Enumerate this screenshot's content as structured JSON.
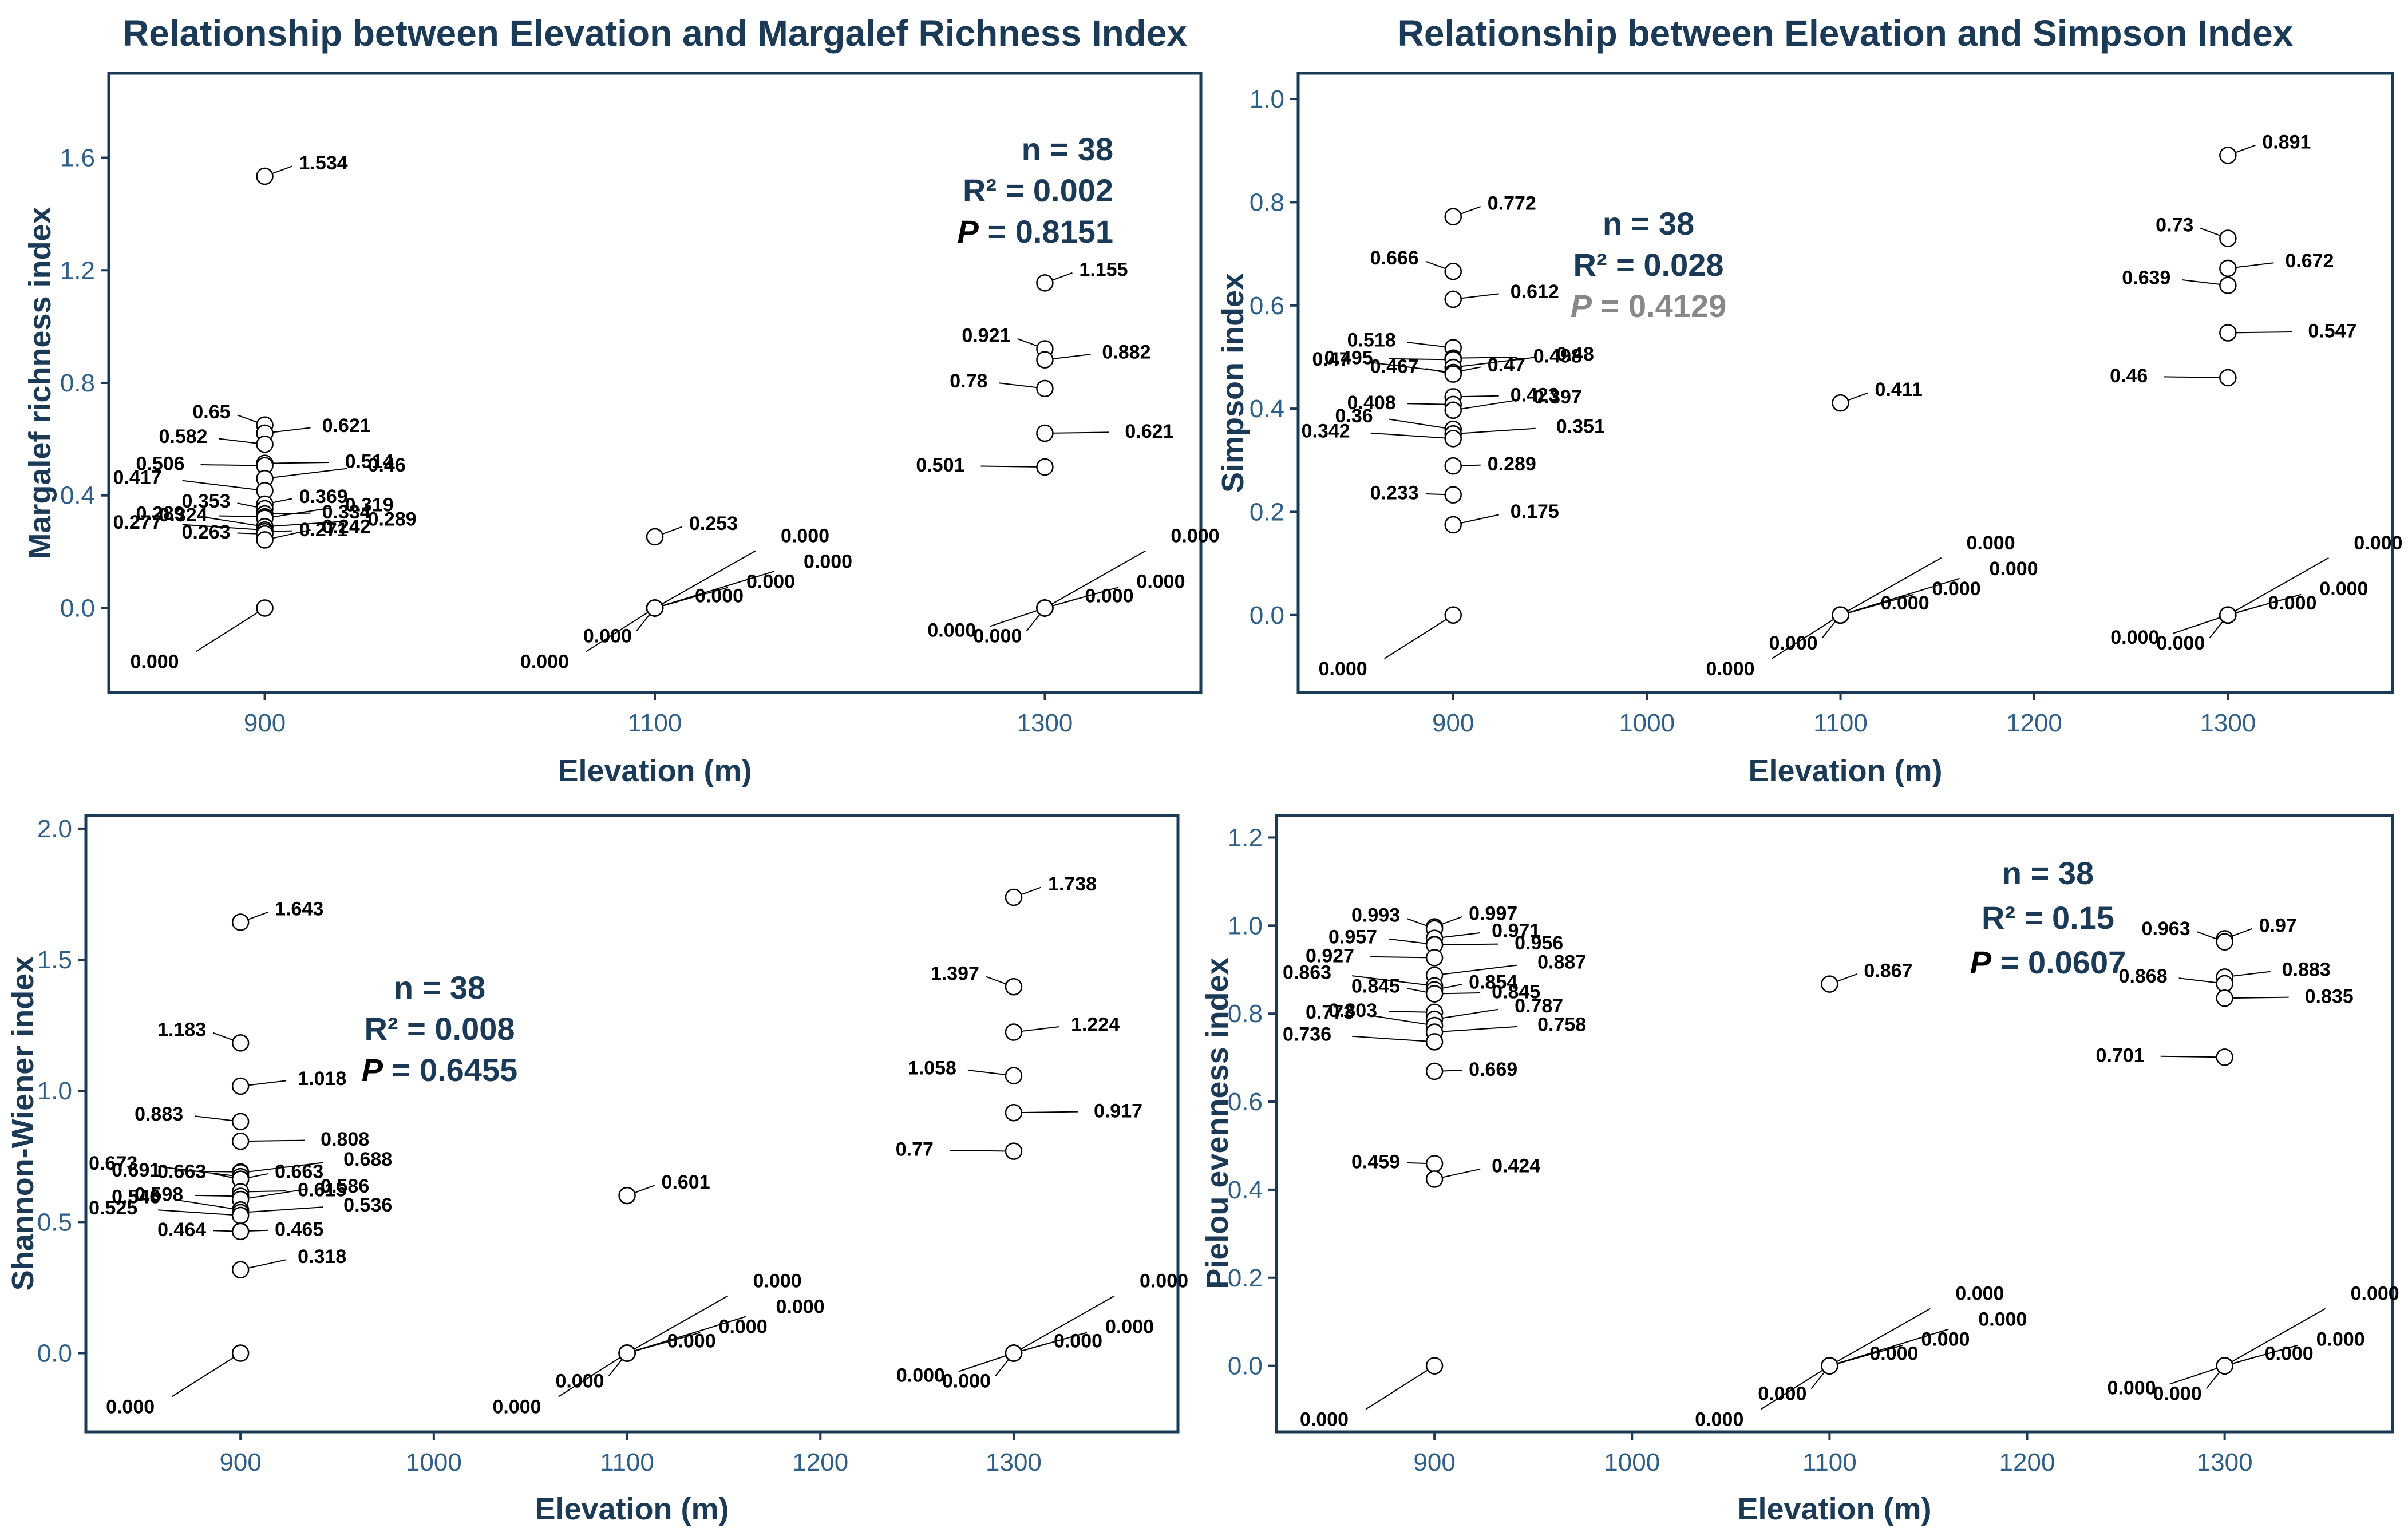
{
  "colors": {
    "navy": "#1b3a57",
    "tick": "#2e5f8a",
    "stat_gray": "#888888",
    "marker_fill": "#ffffff",
    "marker_stroke": "#000000"
  },
  "chart_data": [
    {
      "type": "scatter",
      "title": "Relationship between Elevation and Margalef Richness Index",
      "xlabel": "Elevation (m)",
      "ylabel": "Margalef richness index",
      "xlim": [
        820,
        1380
      ],
      "ylim": [
        -0.3,
        1.9
      ],
      "xticks": [
        900,
        1100,
        1300
      ],
      "yticks": [
        0.0,
        0.4,
        0.8,
        1.2,
        1.6
      ],
      "ytick_labels": [
        "0.0",
        "0.4",
        "0.8",
        "1.2",
        "1.6"
      ],
      "points": [
        {
          "x": 900,
          "y": 1.534,
          "label": "1.534"
        },
        {
          "x": 900,
          "y": 0.65,
          "label": "0.65"
        },
        {
          "x": 900,
          "y": 0.621,
          "label": "0.621"
        },
        {
          "x": 900,
          "y": 0.582,
          "label": "0.582"
        },
        {
          "x": 900,
          "y": 0.514,
          "label": "0.514"
        },
        {
          "x": 900,
          "y": 0.506,
          "label": "0.506"
        },
        {
          "x": 900,
          "y": 0.46,
          "label": "0.46"
        },
        {
          "x": 900,
          "y": 0.417,
          "label": "0.417"
        },
        {
          "x": 900,
          "y": 0.369,
          "label": "0.369"
        },
        {
          "x": 900,
          "y": 0.353,
          "label": "0.353"
        },
        {
          "x": 900,
          "y": 0.334,
          "label": "0.334"
        },
        {
          "x": 900,
          "y": 0.324,
          "label": "0.324"
        },
        {
          "x": 900,
          "y": 0.319,
          "label": "0.319"
        },
        {
          "x": 900,
          "y": 0.289,
          "label": "0.289"
        },
        {
          "x": 900,
          "y": 0.289,
          "label": "0.289"
        },
        {
          "x": 900,
          "y": 0.277,
          "label": "0.277"
        },
        {
          "x": 900,
          "y": 0.271,
          "label": "0.271"
        },
        {
          "x": 900,
          "y": 0.263,
          "label": "0.263"
        },
        {
          "x": 900,
          "y": 0.242,
          "label": "0.242"
        },
        {
          "x": 900,
          "y": 0.0,
          "label": "0.000"
        },
        {
          "x": 1100,
          "y": 0.253,
          "label": "0.253"
        },
        {
          "x": 1100,
          "y": 0.0,
          "label": "0.000"
        },
        {
          "x": 1100,
          "y": 0.0,
          "label": "0.000"
        },
        {
          "x": 1100,
          "y": 0.0,
          "label": "0.000"
        },
        {
          "x": 1100,
          "y": 0.0,
          "label": "0.000"
        },
        {
          "x": 1100,
          "y": 0.0,
          "label": "0.000"
        },
        {
          "x": 1100,
          "y": 0.0,
          "label": "0.000"
        },
        {
          "x": 1300,
          "y": 1.155,
          "label": "1.155"
        },
        {
          "x": 1300,
          "y": 0.921,
          "label": "0.921"
        },
        {
          "x": 1300,
          "y": 0.882,
          "label": "0.882"
        },
        {
          "x": 1300,
          "y": 0.78,
          "label": "0.78"
        },
        {
          "x": 1300,
          "y": 0.621,
          "label": "0.621"
        },
        {
          "x": 1300,
          "y": 0.501,
          "label": "0.501"
        },
        {
          "x": 1300,
          "y": 0.0,
          "label": "0.000"
        },
        {
          "x": 1300,
          "y": 0.0,
          "label": "0.000"
        },
        {
          "x": 1300,
          "y": 0.0,
          "label": "0.000"
        },
        {
          "x": 1300,
          "y": 0.0,
          "label": "0.000"
        },
        {
          "x": 1300,
          "y": 0.0,
          "label": "0.000"
        }
      ],
      "stats": {
        "n": "n = 38",
        "r2": "R² = 0.002",
        "p_symbol": "P",
        "p_value": "= 0.8151",
        "p_color": "navy"
      }
    },
    {
      "type": "scatter",
      "title": "Relationship between Elevation and Simpson Index",
      "xlabel": "Elevation (m)",
      "ylabel": "Simpson index",
      "xlim": [
        820,
        1385
      ],
      "ylim": [
        -0.15,
        1.05
      ],
      "xticks": [
        900,
        1000,
        1100,
        1200,
        1300
      ],
      "yticks": [
        0.0,
        0.2,
        0.4,
        0.6,
        0.8,
        1.0
      ],
      "ytick_labels": [
        "0.0",
        "0.2",
        "0.4",
        "0.6",
        "0.8",
        "1.0"
      ],
      "points": [
        {
          "x": 900,
          "y": 0.772,
          "label": "0.772"
        },
        {
          "x": 900,
          "y": 0.666,
          "label": "0.666"
        },
        {
          "x": 900,
          "y": 0.612,
          "label": "0.612"
        },
        {
          "x": 900,
          "y": 0.518,
          "label": "0.518"
        },
        {
          "x": 900,
          "y": 0.498,
          "label": "0.498"
        },
        {
          "x": 900,
          "y": 0.495,
          "label": "0.495"
        },
        {
          "x": 900,
          "y": 0.48,
          "label": "0.48"
        },
        {
          "x": 900,
          "y": 0.47,
          "label": "0.47"
        },
        {
          "x": 900,
          "y": 0.47,
          "label": "0.47"
        },
        {
          "x": 900,
          "y": 0.467,
          "label": "0.467"
        },
        {
          "x": 900,
          "y": 0.423,
          "label": "0.423"
        },
        {
          "x": 900,
          "y": 0.408,
          "label": "0.408"
        },
        {
          "x": 900,
          "y": 0.397,
          "label": "0.397"
        },
        {
          "x": 900,
          "y": 0.36,
          "label": "0.36"
        },
        {
          "x": 900,
          "y": 0.351,
          "label": "0.351"
        },
        {
          "x": 900,
          "y": 0.342,
          "label": "0.342"
        },
        {
          "x": 900,
          "y": 0.289,
          "label": "0.289"
        },
        {
          "x": 900,
          "y": 0.233,
          "label": "0.233"
        },
        {
          "x": 900,
          "y": 0.175,
          "label": "0.175"
        },
        {
          "x": 900,
          "y": 0.0,
          "label": "0.000"
        },
        {
          "x": 1100,
          "y": 0.411,
          "label": "0.411"
        },
        {
          "x": 1100,
          "y": 0.0,
          "label": "0.000"
        },
        {
          "x": 1100,
          "y": 0.0,
          "label": "0.000"
        },
        {
          "x": 1100,
          "y": 0.0,
          "label": "0.000"
        },
        {
          "x": 1100,
          "y": 0.0,
          "label": "0.000"
        },
        {
          "x": 1100,
          "y": 0.0,
          "label": "0.000"
        },
        {
          "x": 1100,
          "y": 0.0,
          "label": "0.000"
        },
        {
          "x": 1300,
          "y": 0.891,
          "label": "0.891"
        },
        {
          "x": 1300,
          "y": 0.73,
          "label": "0.73"
        },
        {
          "x": 1300,
          "y": 0.672,
          "label": "0.672"
        },
        {
          "x": 1300,
          "y": 0.639,
          "label": "0.639"
        },
        {
          "x": 1300,
          "y": 0.547,
          "label": "0.547"
        },
        {
          "x": 1300,
          "y": 0.46,
          "label": "0.46"
        },
        {
          "x": 1300,
          "y": 0.0,
          "label": "0.000"
        },
        {
          "x": 1300,
          "y": 0.0,
          "label": "0.000"
        },
        {
          "x": 1300,
          "y": 0.0,
          "label": "0.000"
        },
        {
          "x": 1300,
          "y": 0.0,
          "label": "0.000"
        },
        {
          "x": 1300,
          "y": 0.0,
          "label": "0.000"
        }
      ],
      "stats": {
        "n": "n = 38",
        "r2": "R² = 0.028",
        "p_symbol": "P",
        "p_value": "= 0.4129",
        "p_color": "stat_gray"
      }
    },
    {
      "type": "scatter",
      "title": "",
      "xlabel": "Elevation (m)",
      "ylabel": "Shannon-Wiener index",
      "xlim": [
        820,
        1385
      ],
      "ylim": [
        -0.3,
        2.05
      ],
      "xticks": [
        900,
        1000,
        1100,
        1200,
        1300
      ],
      "yticks": [
        0.0,
        0.5,
        1.0,
        1.5,
        2.0
      ],
      "ytick_labels": [
        "0.0",
        "0.5",
        "1.0",
        "1.5",
        "2.0"
      ],
      "points": [
        {
          "x": 900,
          "y": 1.643,
          "label": "1.643"
        },
        {
          "x": 900,
          "y": 1.183,
          "label": "1.183"
        },
        {
          "x": 900,
          "y": 1.018,
          "label": "1.018"
        },
        {
          "x": 900,
          "y": 0.883,
          "label": "0.883"
        },
        {
          "x": 900,
          "y": 0.808,
          "label": "0.808"
        },
        {
          "x": 900,
          "y": 0.691,
          "label": "0.691"
        },
        {
          "x": 900,
          "y": 0.688,
          "label": "0.688"
        },
        {
          "x": 900,
          "y": 0.673,
          "label": "0.673"
        },
        {
          "x": 900,
          "y": 0.663,
          "label": "0.663"
        },
        {
          "x": 900,
          "y": 0.663,
          "label": "0.663"
        },
        {
          "x": 900,
          "y": 0.615,
          "label": "0.615"
        },
        {
          "x": 900,
          "y": 0.598,
          "label": "0.598"
        },
        {
          "x": 900,
          "y": 0.586,
          "label": "0.586"
        },
        {
          "x": 900,
          "y": 0.546,
          "label": "0.546"
        },
        {
          "x": 900,
          "y": 0.536,
          "label": "0.536"
        },
        {
          "x": 900,
          "y": 0.525,
          "label": "0.525"
        },
        {
          "x": 900,
          "y": 0.465,
          "label": "0.465"
        },
        {
          "x": 900,
          "y": 0.464,
          "label": "0.464"
        },
        {
          "x": 900,
          "y": 0.318,
          "label": "0.318"
        },
        {
          "x": 900,
          "y": 0.0,
          "label": "0.000"
        },
        {
          "x": 1100,
          "y": 0.601,
          "label": "0.601"
        },
        {
          "x": 1100,
          "y": 0.0,
          "label": "0.000"
        },
        {
          "x": 1100,
          "y": 0.0,
          "label": "0.000"
        },
        {
          "x": 1100,
          "y": 0.0,
          "label": "0.000"
        },
        {
          "x": 1100,
          "y": 0.0,
          "label": "0.000"
        },
        {
          "x": 1100,
          "y": 0.0,
          "label": "0.000"
        },
        {
          "x": 1100,
          "y": 0.0,
          "label": "0.000"
        },
        {
          "x": 1300,
          "y": 1.738,
          "label": "1.738"
        },
        {
          "x": 1300,
          "y": 1.397,
          "label": "1.397"
        },
        {
          "x": 1300,
          "y": 1.224,
          "label": "1.224"
        },
        {
          "x": 1300,
          "y": 1.058,
          "label": "1.058"
        },
        {
          "x": 1300,
          "y": 0.917,
          "label": "0.917"
        },
        {
          "x": 1300,
          "y": 0.77,
          "label": "0.77"
        },
        {
          "x": 1300,
          "y": 0.0,
          "label": "0.000"
        },
        {
          "x": 1300,
          "y": 0.0,
          "label": "0.000"
        },
        {
          "x": 1300,
          "y": 0.0,
          "label": "0.000"
        },
        {
          "x": 1300,
          "y": 0.0,
          "label": "0.000"
        },
        {
          "x": 1300,
          "y": 0.0,
          "label": "0.000"
        }
      ],
      "stats": {
        "n": "n = 38",
        "r2": "R² = 0.008",
        "p_symbol": "P",
        "p_value": "= 0.6455",
        "p_color": "navy"
      }
    },
    {
      "type": "scatter",
      "title": "",
      "xlabel": "Elevation (m)",
      "ylabel": "Pielou evenness index",
      "xlim": [
        820,
        1385
      ],
      "ylim": [
        -0.15,
        1.25
      ],
      "xticks": [
        900,
        1000,
        1100,
        1200,
        1300
      ],
      "yticks": [
        0.0,
        0.2,
        0.4,
        0.6,
        0.8,
        1.0,
        1.2
      ],
      "ytick_labels": [
        "0.0",
        "0.2",
        "0.4",
        "0.6",
        "0.8",
        "1.0",
        "1.2"
      ],
      "points": [
        {
          "x": 900,
          "y": 0.997,
          "label": "0.997"
        },
        {
          "x": 900,
          "y": 0.993,
          "label": "0.993"
        },
        {
          "x": 900,
          "y": 0.971,
          "label": "0.971"
        },
        {
          "x": 900,
          "y": 0.957,
          "label": "0.957"
        },
        {
          "x": 900,
          "y": 0.956,
          "label": "0.956"
        },
        {
          "x": 900,
          "y": 0.927,
          "label": "0.927"
        },
        {
          "x": 900,
          "y": 0.887,
          "label": "0.887"
        },
        {
          "x": 900,
          "y": 0.863,
          "label": "0.863"
        },
        {
          "x": 900,
          "y": 0.854,
          "label": "0.854"
        },
        {
          "x": 900,
          "y": 0.845,
          "label": "0.845"
        },
        {
          "x": 900,
          "y": 0.845,
          "label": "0.845"
        },
        {
          "x": 900,
          "y": 0.803,
          "label": "0.803"
        },
        {
          "x": 900,
          "y": 0.787,
          "label": "0.787"
        },
        {
          "x": 900,
          "y": 0.773,
          "label": "0.773"
        },
        {
          "x": 900,
          "y": 0.758,
          "label": "0.758"
        },
        {
          "x": 900,
          "y": 0.736,
          "label": "0.736"
        },
        {
          "x": 900,
          "y": 0.669,
          "label": "0.669"
        },
        {
          "x": 900,
          "y": 0.459,
          "label": "0.459"
        },
        {
          "x": 900,
          "y": 0.424,
          "label": "0.424"
        },
        {
          "x": 900,
          "y": 0.0,
          "label": "0.000"
        },
        {
          "x": 1100,
          "y": 0.867,
          "label": "0.867"
        },
        {
          "x": 1100,
          "y": 0.0,
          "label": "0.000"
        },
        {
          "x": 1100,
          "y": 0.0,
          "label": "0.000"
        },
        {
          "x": 1100,
          "y": 0.0,
          "label": "0.000"
        },
        {
          "x": 1100,
          "y": 0.0,
          "label": "0.000"
        },
        {
          "x": 1100,
          "y": 0.0,
          "label": "0.000"
        },
        {
          "x": 1100,
          "y": 0.0,
          "label": "0.000"
        },
        {
          "x": 1300,
          "y": 0.97,
          "label": "0.97"
        },
        {
          "x": 1300,
          "y": 0.963,
          "label": "0.963"
        },
        {
          "x": 1300,
          "y": 0.883,
          "label": "0.883"
        },
        {
          "x": 1300,
          "y": 0.868,
          "label": "0.868"
        },
        {
          "x": 1300,
          "y": 0.835,
          "label": "0.835"
        },
        {
          "x": 1300,
          "y": 0.701,
          "label": "0.701"
        },
        {
          "x": 1300,
          "y": 0.0,
          "label": "0.000"
        },
        {
          "x": 1300,
          "y": 0.0,
          "label": "0.000"
        },
        {
          "x": 1300,
          "y": 0.0,
          "label": "0.000"
        },
        {
          "x": 1300,
          "y": 0.0,
          "label": "0.000"
        },
        {
          "x": 1300,
          "y": 0.0,
          "label": "0.000"
        }
      ],
      "stats": {
        "n": "n = 38",
        "r2": "R² = 0.15",
        "p_symbol": "P",
        "p_value": "= 0.0607",
        "p_color": "navy"
      }
    }
  ]
}
